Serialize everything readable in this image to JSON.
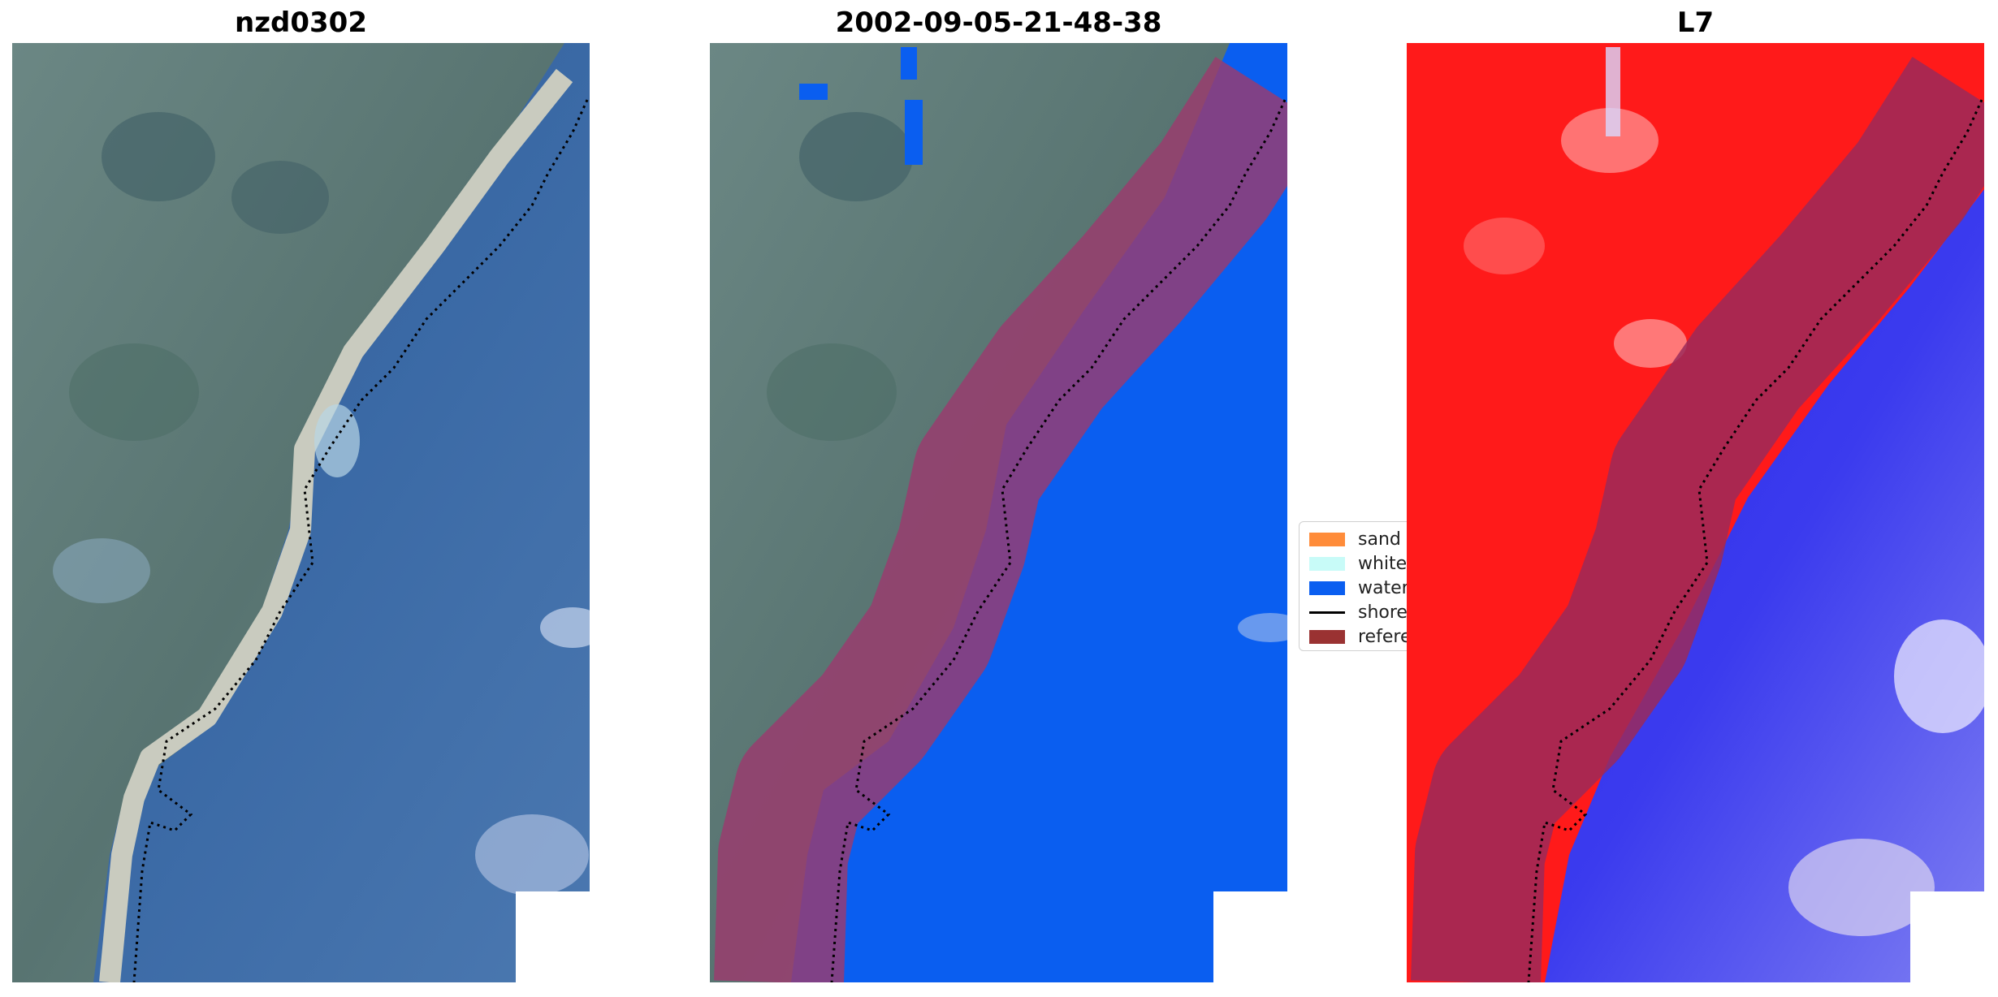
{
  "panels": [
    {
      "title": "nzd0302"
    },
    {
      "title": "2002-09-05-21-48-38"
    },
    {
      "title": "L7"
    }
  ],
  "legend": {
    "items": [
      {
        "label": "sand",
        "color": "#ff8c3a",
        "kind": "patch"
      },
      {
        "label": "whitewater",
        "color": "#c8fbf8",
        "kind": "patch"
      },
      {
        "label": "water",
        "color": "#0a5ef0",
        "kind": "patch"
      },
      {
        "label": "shoreline",
        "color": "#000000",
        "kind": "line"
      },
      {
        "label": "reference shoreline buffer",
        "color": "#9a3232",
        "kind": "patch"
      }
    ]
  },
  "colors": {
    "land": "#5d7a78",
    "sea": "#3c6aa3",
    "beach": "#c7c9bd",
    "classified_water": "#0a5ef0",
    "buffer_overlay": "#9b3a6e",
    "index_land": "#ff1a1a",
    "index_water": "#2a2ae8"
  }
}
